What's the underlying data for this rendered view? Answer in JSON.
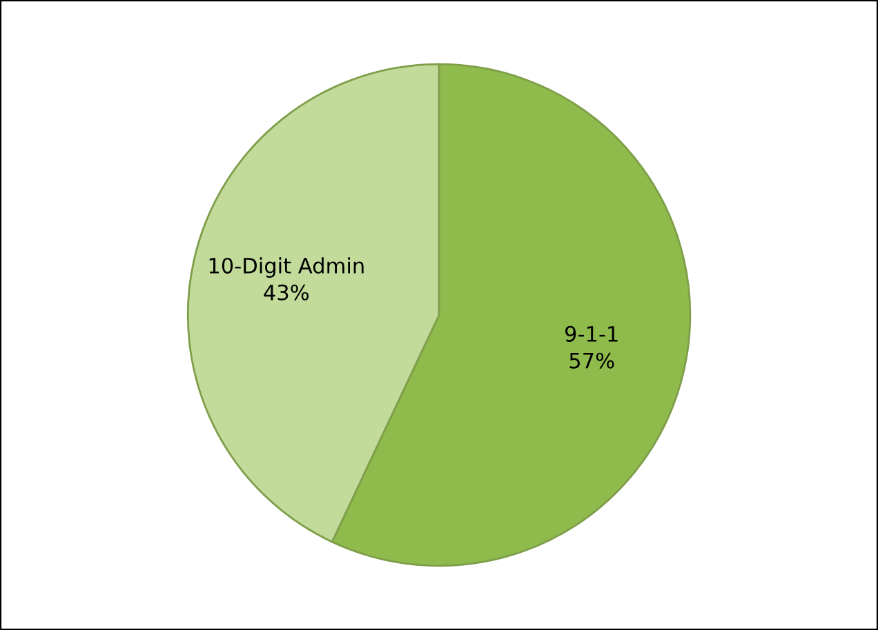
{
  "chart_data": {
    "type": "pie",
    "categories": [
      "9-1-1",
      "10-Digit Admin"
    ],
    "values": [
      57,
      43
    ],
    "colors": [
      "#8fba4c",
      "#c2db9a"
    ],
    "value_labels": [
      "57%",
      "43%"
    ]
  }
}
